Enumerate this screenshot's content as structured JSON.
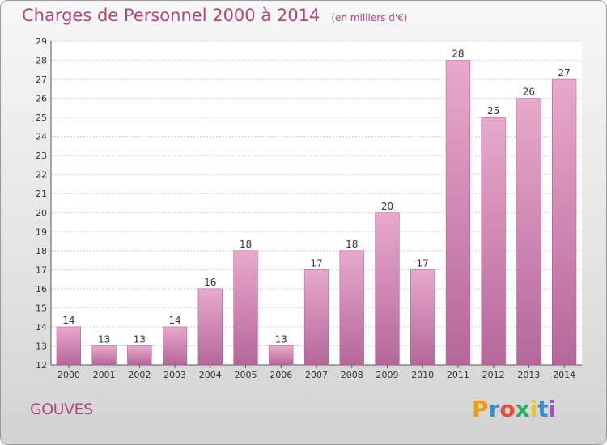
{
  "header": {
    "title": "Charges de Personnel 2000 à 2014",
    "subtitle": "(en milliers d'€)"
  },
  "footer": {
    "commune": "GOUVES",
    "logo_text": "Proxiti",
    "logo_colors": [
      "#f39c12",
      "#3b8fd6",
      "#e74c3c",
      "#27ae60",
      "#f1c40f",
      "#3b8fd6",
      "#9b59b6"
    ]
  },
  "chart_data": {
    "type": "bar",
    "title": "Charges de Personnel 2000 à 2014",
    "subtitle": "(en milliers d'€)",
    "categories": [
      "2000",
      "2001",
      "2002",
      "2003",
      "2004",
      "2005",
      "2006",
      "2007",
      "2008",
      "2009",
      "2010",
      "2011",
      "2012",
      "2013",
      "2014"
    ],
    "values": [
      14,
      13,
      13,
      14,
      16,
      18,
      13,
      17,
      18,
      20,
      17,
      28,
      25,
      26,
      27
    ],
    "ylim": [
      12,
      29
    ],
    "yticks": [
      12,
      13,
      14,
      15,
      16,
      17,
      18,
      19,
      20,
      21,
      22,
      23,
      24,
      25,
      26,
      27,
      28,
      29
    ],
    "grid": true,
    "bar_color": "#d98bb6",
    "bar_color_light": "#e8a9cc",
    "bar_color_dark": "#b5679a"
  }
}
